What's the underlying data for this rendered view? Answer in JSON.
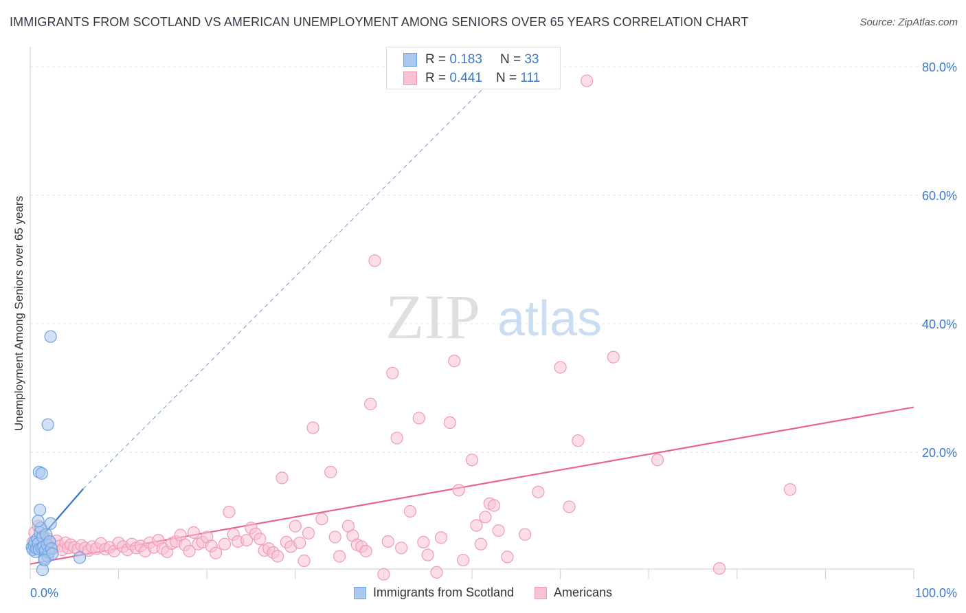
{
  "title": "IMMIGRANTS FROM SCOTLAND VS AMERICAN UNEMPLOYMENT AMONG SENIORS OVER 65 YEARS CORRELATION CHART",
  "source": "Source: ZipAtlas.com",
  "watermark": {
    "zip": "ZIP",
    "atlas": "atlas"
  },
  "colors": {
    "blue": "#6fa3e0",
    "blue_fill": "#a9c8ee",
    "blue_line": "#2f72cf",
    "pink": "#f19ab6",
    "pink_fill": "#f7c3d4",
    "pink_line": "#e8648f",
    "axis_text": "#3a78c9",
    "grid": "#e3e3e3"
  },
  "legend": {
    "r_label": "R = ",
    "n_label": "N = ",
    "rows": [
      {
        "series": "Immigrants from Scotland",
        "r": "0.183",
        "n": "33"
      },
      {
        "series": "Americans",
        "r": "0.441",
        "n": "111"
      }
    ]
  },
  "chart_data": {
    "type": "scatter",
    "title": "IMMIGRANTS FROM SCOTLAND VS AMERICAN UNEMPLOYMENT AMONG SENIORS OVER 65 YEARS CORRELATION CHART",
    "xlabel": "",
    "ylabel": "Unemployment Among Seniors over 65 years",
    "xlim": [
      0,
      100
    ],
    "ylim": [
      0,
      82
    ],
    "x_ticks": [
      0,
      100
    ],
    "x_tick_labels": [
      "0.0%",
      "100.0%"
    ],
    "y_ticks": [
      20,
      40,
      60,
      80
    ],
    "y_tick_labels": [
      "20.0%",
      "40.0%",
      "60.0%",
      "80.0%"
    ],
    "grid": true,
    "legend_position": "top-center",
    "series": [
      {
        "name": "Immigrants from Scotland",
        "color": "#6fa3e0",
        "points": [
          [
            0.2,
            5.2
          ],
          [
            0.3,
            4.8
          ],
          [
            0.4,
            5.5
          ],
          [
            0.5,
            6.0
          ],
          [
            0.6,
            4.5
          ],
          [
            0.7,
            5.0
          ],
          [
            0.8,
            6.5
          ],
          [
            0.9,
            5.8
          ],
          [
            1.0,
            4.9
          ],
          [
            1.1,
            7.5
          ],
          [
            1.2,
            8.2
          ],
          [
            1.3,
            5.1
          ],
          [
            1.4,
            6.8
          ],
          [
            1.5,
            5.3
          ],
          [
            1.6,
            3.5
          ],
          [
            1.7,
            4.7
          ],
          [
            1.8,
            7.2
          ],
          [
            1.9,
            5.6
          ],
          [
            2.0,
            3.8
          ],
          [
            2.1,
            4.4
          ],
          [
            2.2,
            6.1
          ],
          [
            2.3,
            8.9
          ],
          [
            2.4,
            5.0
          ],
          [
            2.5,
            4.2
          ],
          [
            2.0,
            24.3
          ],
          [
            2.3,
            38.0
          ],
          [
            1.0,
            16.9
          ],
          [
            1.3,
            16.7
          ],
          [
            1.1,
            11.0
          ],
          [
            1.4,
            1.7
          ],
          [
            1.6,
            3.2
          ],
          [
            5.6,
            3.6
          ],
          [
            0.9,
            9.3
          ]
        ],
        "trend": {
          "x": [
            0,
            6.0
          ],
          "y": [
            4.8,
            14.3
          ],
          "extended_to": [
            53,
            79
          ]
        }
      },
      {
        "name": "Americans",
        "color": "#f19ab6",
        "points": [
          [
            0.3,
            6.0
          ],
          [
            0.5,
            7.5
          ],
          [
            0.7,
            5.5
          ],
          [
            0.9,
            8.5
          ],
          [
            1.1,
            6.3
          ],
          [
            1.5,
            7.0
          ],
          [
            1.8,
            5.2
          ],
          [
            2.0,
            6.5
          ],
          [
            2.3,
            5.8
          ],
          [
            2.6,
            5.0
          ],
          [
            3.0,
            6.2
          ],
          [
            3.3,
            5.4
          ],
          [
            3.6,
            4.8
          ],
          [
            4.0,
            5.9
          ],
          [
            4.3,
            5.1
          ],
          [
            4.6,
            5.6
          ],
          [
            5.0,
            5.2
          ],
          [
            5.4,
            4.9
          ],
          [
            5.8,
            5.5
          ],
          [
            6.2,
            5.1
          ],
          [
            6.6,
            4.7
          ],
          [
            7.0,
            5.3
          ],
          [
            7.5,
            5.0
          ],
          [
            8.0,
            5.8
          ],
          [
            8.5,
            4.9
          ],
          [
            9.0,
            5.2
          ],
          [
            9.5,
            4.6
          ],
          [
            10.0,
            5.9
          ],
          [
            10.5,
            5.3
          ],
          [
            11.0,
            4.8
          ],
          [
            11.5,
            5.7
          ],
          [
            12.0,
            5.1
          ],
          [
            12.5,
            5.4
          ],
          [
            13.0,
            4.6
          ],
          [
            13.5,
            5.9
          ],
          [
            14.0,
            5.2
          ],
          [
            14.5,
            6.3
          ],
          [
            15.0,
            5.0
          ],
          [
            15.5,
            4.5
          ],
          [
            16.0,
            5.8
          ],
          [
            16.5,
            6.1
          ],
          [
            17.0,
            7.1
          ],
          [
            17.5,
            5.6
          ],
          [
            18.0,
            4.6
          ],
          [
            18.5,
            7.5
          ],
          [
            19.0,
            5.7
          ],
          [
            19.5,
            6.0
          ],
          [
            20.0,
            6.8
          ],
          [
            20.5,
            5.4
          ],
          [
            21.0,
            4.3
          ],
          [
            22.0,
            5.7
          ],
          [
            22.5,
            10.7
          ],
          [
            23.0,
            7.2
          ],
          [
            23.5,
            6.1
          ],
          [
            24.5,
            6.3
          ],
          [
            25.0,
            8.2
          ],
          [
            25.5,
            7.3
          ],
          [
            26.0,
            6.5
          ],
          [
            26.5,
            4.7
          ],
          [
            27.0,
            5.0
          ],
          [
            27.5,
            4.4
          ],
          [
            28.0,
            3.8
          ],
          [
            28.5,
            16.0
          ],
          [
            29.0,
            6.0
          ],
          [
            29.5,
            5.3
          ],
          [
            30.0,
            8.5
          ],
          [
            30.5,
            5.9
          ],
          [
            31.0,
            3.1
          ],
          [
            31.5,
            7.4
          ],
          [
            32.0,
            23.8
          ],
          [
            33.0,
            9.6
          ],
          [
            34.0,
            16.9
          ],
          [
            34.5,
            6.8
          ],
          [
            35.0,
            3.8
          ],
          [
            36.0,
            8.5
          ],
          [
            36.5,
            7.0
          ],
          [
            37.0,
            5.6
          ],
          [
            37.5,
            5.3
          ],
          [
            38.0,
            4.6
          ],
          [
            38.5,
            27.5
          ],
          [
            39.0,
            49.8
          ],
          [
            40.0,
            1.0
          ],
          [
            40.5,
            6.1
          ],
          [
            41.0,
            32.3
          ],
          [
            41.5,
            22.2
          ],
          [
            42.0,
            5.1
          ],
          [
            43.0,
            10.8
          ],
          [
            44.0,
            25.3
          ],
          [
            44.5,
            6.0
          ],
          [
            45.0,
            4.0
          ],
          [
            46.0,
            1.3
          ],
          [
            46.5,
            6.7
          ],
          [
            47.5,
            24.6
          ],
          [
            48.0,
            34.2
          ],
          [
            48.5,
            14.1
          ],
          [
            49.0,
            3.2
          ],
          [
            50.0,
            18.8
          ],
          [
            50.5,
            8.6
          ],
          [
            51.0,
            5.7
          ],
          [
            51.5,
            9.9
          ],
          [
            52.0,
            12.0
          ],
          [
            52.5,
            11.7
          ],
          [
            53.0,
            7.8
          ],
          [
            54.0,
            3.7
          ],
          [
            56.0,
            7.2
          ],
          [
            57.5,
            13.8
          ],
          [
            60.0,
            33.2
          ],
          [
            61.0,
            11.5
          ],
          [
            62.0,
            21.8
          ],
          [
            63.0,
            77.8
          ],
          [
            66.0,
            34.8
          ],
          [
            71.0,
            18.8
          ],
          [
            78.0,
            1.9
          ],
          [
            86.0,
            14.2
          ]
        ],
        "trend": {
          "x": [
            0,
            100
          ],
          "y": [
            2.6,
            27.0
          ]
        }
      }
    ]
  }
}
